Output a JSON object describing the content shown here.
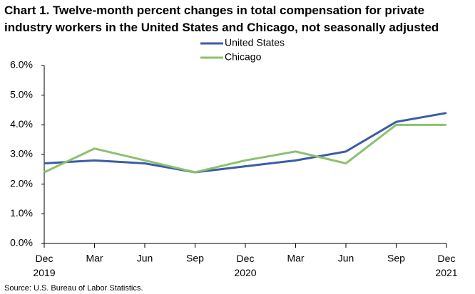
{
  "chart_data": {
    "type": "line",
    "title": "Chart 1. Twelve-month percent changes in total compensation for private industry workers in the United States and Chicago, not seasonally adjusted",
    "categories": [
      "Dec 2019",
      "Mar",
      "Jun",
      "Sep",
      "Dec 2020",
      "Mar",
      "Jun",
      "Sep",
      "Dec 2021"
    ],
    "series": [
      {
        "name": "United States",
        "color": "#3b5ca6",
        "values": [
          2.7,
          2.8,
          2.7,
          2.4,
          2.6,
          2.8,
          3.1,
          4.1,
          4.4
        ]
      },
      {
        "name": "Chicago",
        "color": "#8cc16e",
        "values": [
          2.4,
          3.2,
          2.8,
          2.4,
          2.8,
          3.1,
          2.7,
          4.0,
          4.0
        ]
      }
    ],
    "ylim": [
      0,
      6
    ],
    "yticks": [
      {
        "value": 0,
        "label": "0.0%"
      },
      {
        "value": 1,
        "label": "1.0%"
      },
      {
        "value": 2,
        "label": "2.0%"
      },
      {
        "value": 3,
        "label": "3.0%"
      },
      {
        "value": 4,
        "label": "4.0%"
      },
      {
        "value": 5,
        "label": "5.0%"
      },
      {
        "value": 6,
        "label": "6.0%"
      }
    ],
    "grid": false,
    "source": "Source: U.S. Bureau of Labor Statistics."
  }
}
